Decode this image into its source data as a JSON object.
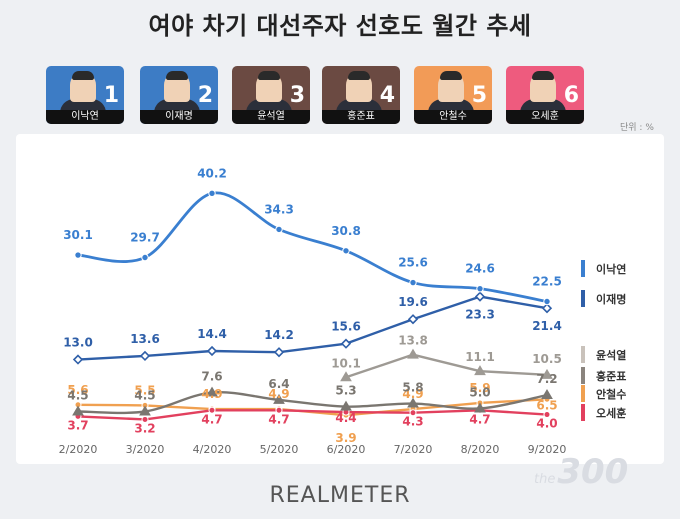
{
  "title": "여야 차기 대선주자 선호도 월간 추세",
  "unit": "단위 : %",
  "brand": "REALMETER",
  "watermark": {
    "prefix": "the",
    "main": "300"
  },
  "candidates": [
    {
      "name": "이낙연",
      "number": "1",
      "color": "#3d7cc5"
    },
    {
      "name": "이재명",
      "number": "2",
      "color": "#3d7cc5"
    },
    {
      "name": "윤석열",
      "number": "3",
      "color": "#6b4a42"
    },
    {
      "name": "홍준표",
      "number": "4",
      "color": "#6b4a42"
    },
    {
      "name": "안철수",
      "number": "5",
      "color": "#f29b57"
    },
    {
      "name": "오세훈",
      "number": "6",
      "color": "#ee5b7e"
    }
  ],
  "chart_data": {
    "type": "line",
    "title": "여야 차기 대선주자 선호도 월간 추세",
    "xlabel": "",
    "ylabel": "",
    "unit": "%",
    "categories": [
      "2/2020",
      "3/2020",
      "4/2020",
      "5/2020",
      "6/2020",
      "7/2020",
      "8/2020",
      "9/2020"
    ],
    "ylim": [
      0,
      45
    ],
    "grid": false,
    "legend": "right",
    "series": [
      {
        "name": "이낙연",
        "color": "#3a7fd0",
        "marker": "circle",
        "smooth": true,
        "values": [
          30.1,
          29.7,
          40.2,
          34.3,
          30.8,
          25.6,
          24.6,
          22.5
        ],
        "labels": [
          "30.1",
          "29.7",
          "40.2",
          "34.3",
          "30.8",
          "25.6",
          "24.6",
          "22.5"
        ]
      },
      {
        "name": "이재명",
        "color": "#2f5fa8",
        "marker": "diamond",
        "smooth": false,
        "values": [
          13.0,
          13.6,
          14.4,
          14.2,
          15.6,
          19.6,
          23.3,
          21.4
        ],
        "labels": [
          "13.0",
          "13.6",
          "14.4",
          "14.2",
          "15.6",
          "19.6",
          "23.3",
          "21.4"
        ]
      },
      {
        "name": "윤석열",
        "color": "#9e9a94",
        "marker": "triangle",
        "smooth": false,
        "values": [
          null,
          null,
          null,
          null,
          10.1,
          13.8,
          11.1,
          10.5
        ],
        "labels": [
          null,
          null,
          null,
          null,
          "10.1",
          "13.8",
          "11.1",
          "10.5"
        ]
      },
      {
        "name": "홍준표",
        "color": "#7a7670",
        "marker": "triangle",
        "smooth": true,
        "values": [
          4.5,
          4.5,
          7.6,
          6.4,
          5.3,
          5.8,
          5.0,
          7.2
        ],
        "labels": [
          "4.5",
          "4.5",
          "7.6",
          "6.4",
          "5.3",
          "5.8",
          "5.0",
          "7.2"
        ]
      },
      {
        "name": "안철수",
        "color": "#f0a050",
        "marker": "circle",
        "smooth": false,
        "values": [
          5.6,
          5.5,
          4.9,
          4.9,
          3.9,
          4.9,
          5.9,
          6.5
        ],
        "labels": [
          "5.6",
          "5.5",
          "4.9",
          "4.9",
          "3.9",
          "4.9",
          "5.9",
          "6.5"
        ]
      },
      {
        "name": "오세훈",
        "color": "#e2405e",
        "marker": "circle",
        "smooth": false,
        "values": [
          3.7,
          3.2,
          4.7,
          4.7,
          4.4,
          4.3,
          4.7,
          4.0
        ],
        "labels": [
          "3.7",
          "3.2",
          "4.7",
          "4.7",
          "4.4",
          "4.3",
          "4.7",
          "4.0"
        ]
      }
    ],
    "legend_entries": [
      {
        "name": "이낙연",
        "color": "#3a7fd0"
      },
      {
        "name": "이재명",
        "color": "#2f5fa8"
      },
      {
        "name": "윤석열",
        "color": "#c9c2bb"
      },
      {
        "name": "홍준표",
        "color": "#8a847e"
      },
      {
        "name": "안철수",
        "color": "#f0a050"
      },
      {
        "name": "오세훈",
        "color": "#e2405e"
      }
    ]
  }
}
